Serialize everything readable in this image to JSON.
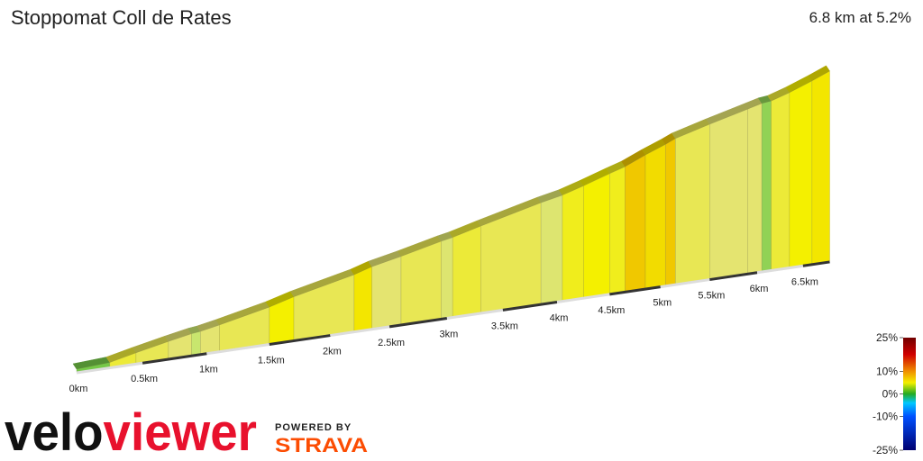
{
  "chart_data": {
    "type": "profile3d",
    "title": "Stoppomat Coll de Rates",
    "subtitle": "6.8 km at 5.2%",
    "x": [
      0,
      0.25,
      0.45,
      0.7,
      0.88,
      0.95,
      1.1,
      1.5,
      1.7,
      2.2,
      2.35,
      2.6,
      2.95,
      3.05,
      3.3,
      3.85,
      4.05,
      4.25,
      4.5,
      4.65,
      4.85,
      5.05,
      5.15,
      5.5,
      5.9,
      6.05,
      6.15,
      6.35,
      6.6
    ],
    "values": [
      1.5,
      6,
      5.5,
      5,
      3,
      5,
      5.5,
      7,
      5.5,
      7.5,
      5,
      5.5,
      4.5,
      6,
      5.5,
      4.5,
      6.5,
      7,
      6.5,
      9,
      8,
      9,
      5.5,
      5,
      5,
      2,
      6,
      7,
      7.5
    ],
    "xlim": [
      0,
      6.8
    ],
    "xticks": [
      {
        "value": 0,
        "label": "0km"
      },
      {
        "value": 0.5,
        "label": "0.5km"
      },
      {
        "value": 1,
        "label": "1km"
      },
      {
        "value": 1.5,
        "label": "1.5km"
      },
      {
        "value": 2,
        "label": "2km"
      },
      {
        "value": 2.5,
        "label": "2.5km"
      },
      {
        "value": 3,
        "label": "3km"
      },
      {
        "value": 3.5,
        "label": "3.5km"
      },
      {
        "value": 4,
        "label": "4km"
      },
      {
        "value": 4.5,
        "label": "4.5km"
      },
      {
        "value": 5,
        "label": "5km"
      },
      {
        "value": 5.5,
        "label": "5.5km"
      },
      {
        "value": 6,
        "label": "6km"
      },
      {
        "value": 6.5,
        "label": "6.5km"
      }
    ],
    "colorbar": {
      "lim": [
        -25,
        25
      ],
      "ticks": [
        {
          "value": 25,
          "label": "25%"
        },
        {
          "value": 10,
          "label": "10%"
        },
        {
          "value": 0,
          "label": "0%"
        },
        {
          "value": -10,
          "label": "-10%"
        },
        {
          "value": -25,
          "label": "-25%"
        }
      ]
    }
  },
  "branding": {
    "logo": [
      "velo",
      "viewer"
    ],
    "powered_by": "POWERED BY",
    "strava": "STRAVA"
  }
}
